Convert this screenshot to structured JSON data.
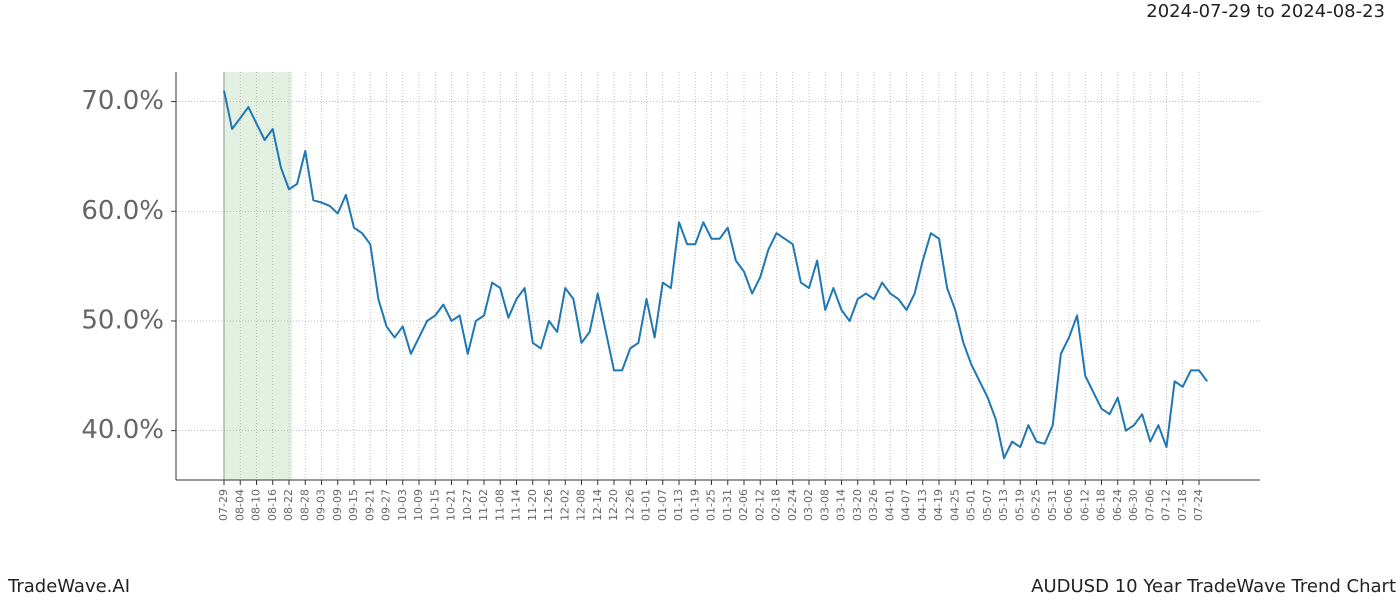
{
  "chart_data": {
    "type": "line",
    "title": "AUDUSD 10 Year TradeWave Trend Chart",
    "subtitle": "2024-07-29 to 2024-08-23",
    "source": "TradeWave.AI",
    "categories": [
      "07-29",
      null,
      "08-04",
      null,
      "08-10",
      null,
      "08-16",
      null,
      "08-22",
      null,
      "08-28",
      null,
      "09-03",
      null,
      "09-09",
      null,
      "09-15",
      null,
      "09-21",
      null,
      "09-27",
      null,
      "10-03",
      null,
      "10-09",
      null,
      "10-15",
      null,
      "10-21",
      null,
      "10-27",
      null,
      "11-02",
      null,
      "11-08",
      null,
      "11-14",
      null,
      "11-20",
      null,
      "11-26",
      null,
      "12-02",
      null,
      "12-08",
      null,
      "12-14",
      null,
      "12-20",
      null,
      "12-26",
      null,
      "01-01",
      null,
      "01-07",
      null,
      "01-13",
      null,
      "01-19",
      null,
      "01-25",
      null,
      "01-31",
      null,
      "02-06",
      null,
      "02-12",
      null,
      "02-18",
      null,
      "02-24",
      null,
      "03-02",
      null,
      "03-08",
      null,
      "03-14",
      null,
      "03-20",
      null,
      "03-26",
      null,
      "04-01",
      null,
      "04-07",
      null,
      "04-13",
      null,
      "04-19",
      null,
      "04-25",
      null,
      "05-01",
      null,
      "05-07",
      null,
      "05-13",
      null,
      "05-19",
      null,
      "05-25",
      null,
      "05-31",
      null,
      "06-06",
      null,
      "06-12",
      null,
      "06-18",
      null,
      "06-24",
      null,
      "06-30",
      null,
      "07-06",
      null,
      "07-12",
      null,
      "07-18",
      null,
      "07-24",
      null
    ],
    "series": [
      {
        "name": "AUDUSD",
        "color": "#1f77b4",
        "values": [
          71.0,
          67.5,
          68.5,
          69.5,
          68.0,
          66.5,
          67.5,
          64.0,
          62.0,
          62.5,
          65.5,
          61.0,
          60.8,
          60.5,
          59.8,
          61.5,
          58.5,
          58.0,
          57.0,
          52.0,
          49.5,
          48.5,
          49.5,
          47.0,
          48.5,
          50.0,
          50.5,
          51.5,
          50.0,
          50.5,
          47.0,
          50.0,
          50.5,
          53.5,
          53.0,
          50.3,
          52.0,
          53.0,
          48.0,
          47.5,
          50.0,
          49.0,
          53.0,
          52.0,
          48.0,
          49.0,
          52.5,
          49.0,
          45.5,
          45.5,
          47.5,
          48.0,
          52.0,
          48.5,
          53.5,
          53.0,
          59.0,
          57.0,
          57.0,
          59.0,
          57.5,
          57.5,
          58.5,
          55.5,
          54.5,
          52.5,
          54.0,
          56.5,
          58.0,
          57.5,
          57.0,
          53.5,
          53.0,
          55.5,
          51.0,
          53.0,
          51.0,
          50.0,
          52.0,
          52.5,
          52.0,
          53.5,
          52.5,
          52.0,
          51.0,
          52.5,
          55.5,
          58.0,
          57.5,
          53.0,
          51.0,
          48.0,
          46.0,
          44.5,
          43.0,
          41.0,
          37.5,
          39.0,
          38.5,
          40.5,
          39.0,
          38.8,
          40.5,
          47.0,
          48.5,
          50.5,
          45.0,
          43.5,
          42.0,
          41.5,
          43.0,
          40.0,
          40.5,
          41.5,
          39.0,
          40.5,
          38.5,
          44.5,
          44.0,
          45.5,
          45.5,
          44.5
        ]
      }
    ],
    "ylim": [
      35.5,
      72.7
    ],
    "yticks": [
      {
        "value": 40,
        "label": "40.0%"
      },
      {
        "value": 50,
        "label": "50.0%"
      },
      {
        "value": 60,
        "label": "60.0%"
      },
      {
        "value": 70,
        "label": "70.0%"
      }
    ],
    "grid": true
  }
}
